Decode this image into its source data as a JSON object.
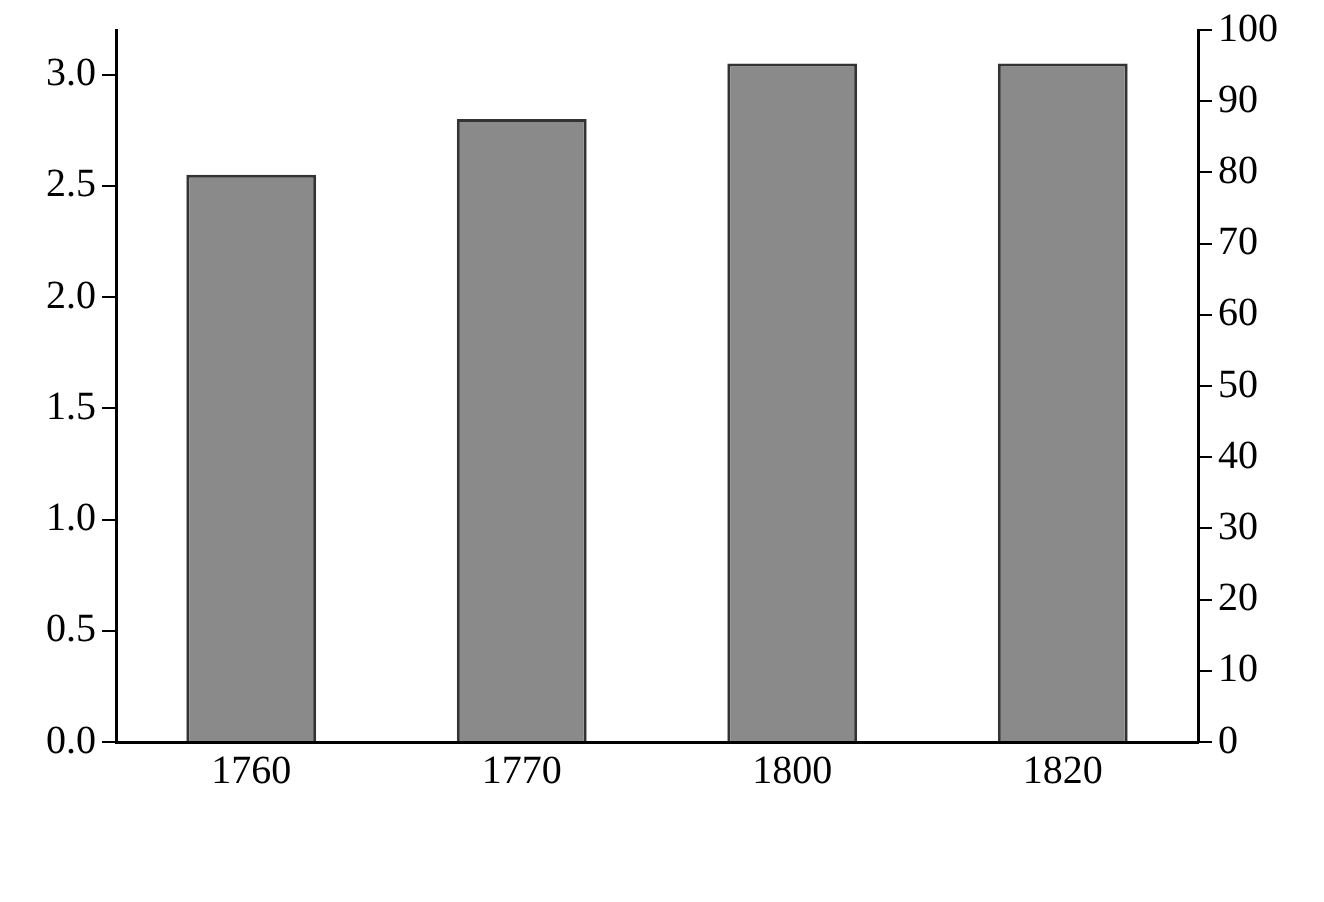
{
  "chart_data": {
    "type": "bar",
    "categories": [
      "1760",
      "1770",
      "1800",
      "1820"
    ],
    "series": [
      {
        "color": "#8a8a8a",
        "values": [
          2.55,
          2.8,
          3.05,
          3.05
        ]
      }
    ],
    "ylim": [
      0,
      3.2
    ],
    "yticks": [
      {
        "value": 0,
        "label": "0.0"
      },
      0.5,
      {
        "value": 1,
        "label": "1.0"
      },
      1.5,
      {
        "value": 2,
        "label": "2.0"
      },
      2.5,
      {
        "value": 3,
        "label": "3.0"
      }
    ],
    "y2lim": [
      0,
      100
    ],
    "y2ticks": [
      0,
      10,
      20,
      30,
      40,
      50,
      60,
      70,
      80,
      90,
      100
    ],
    "grid": false,
    "legend": false
  }
}
